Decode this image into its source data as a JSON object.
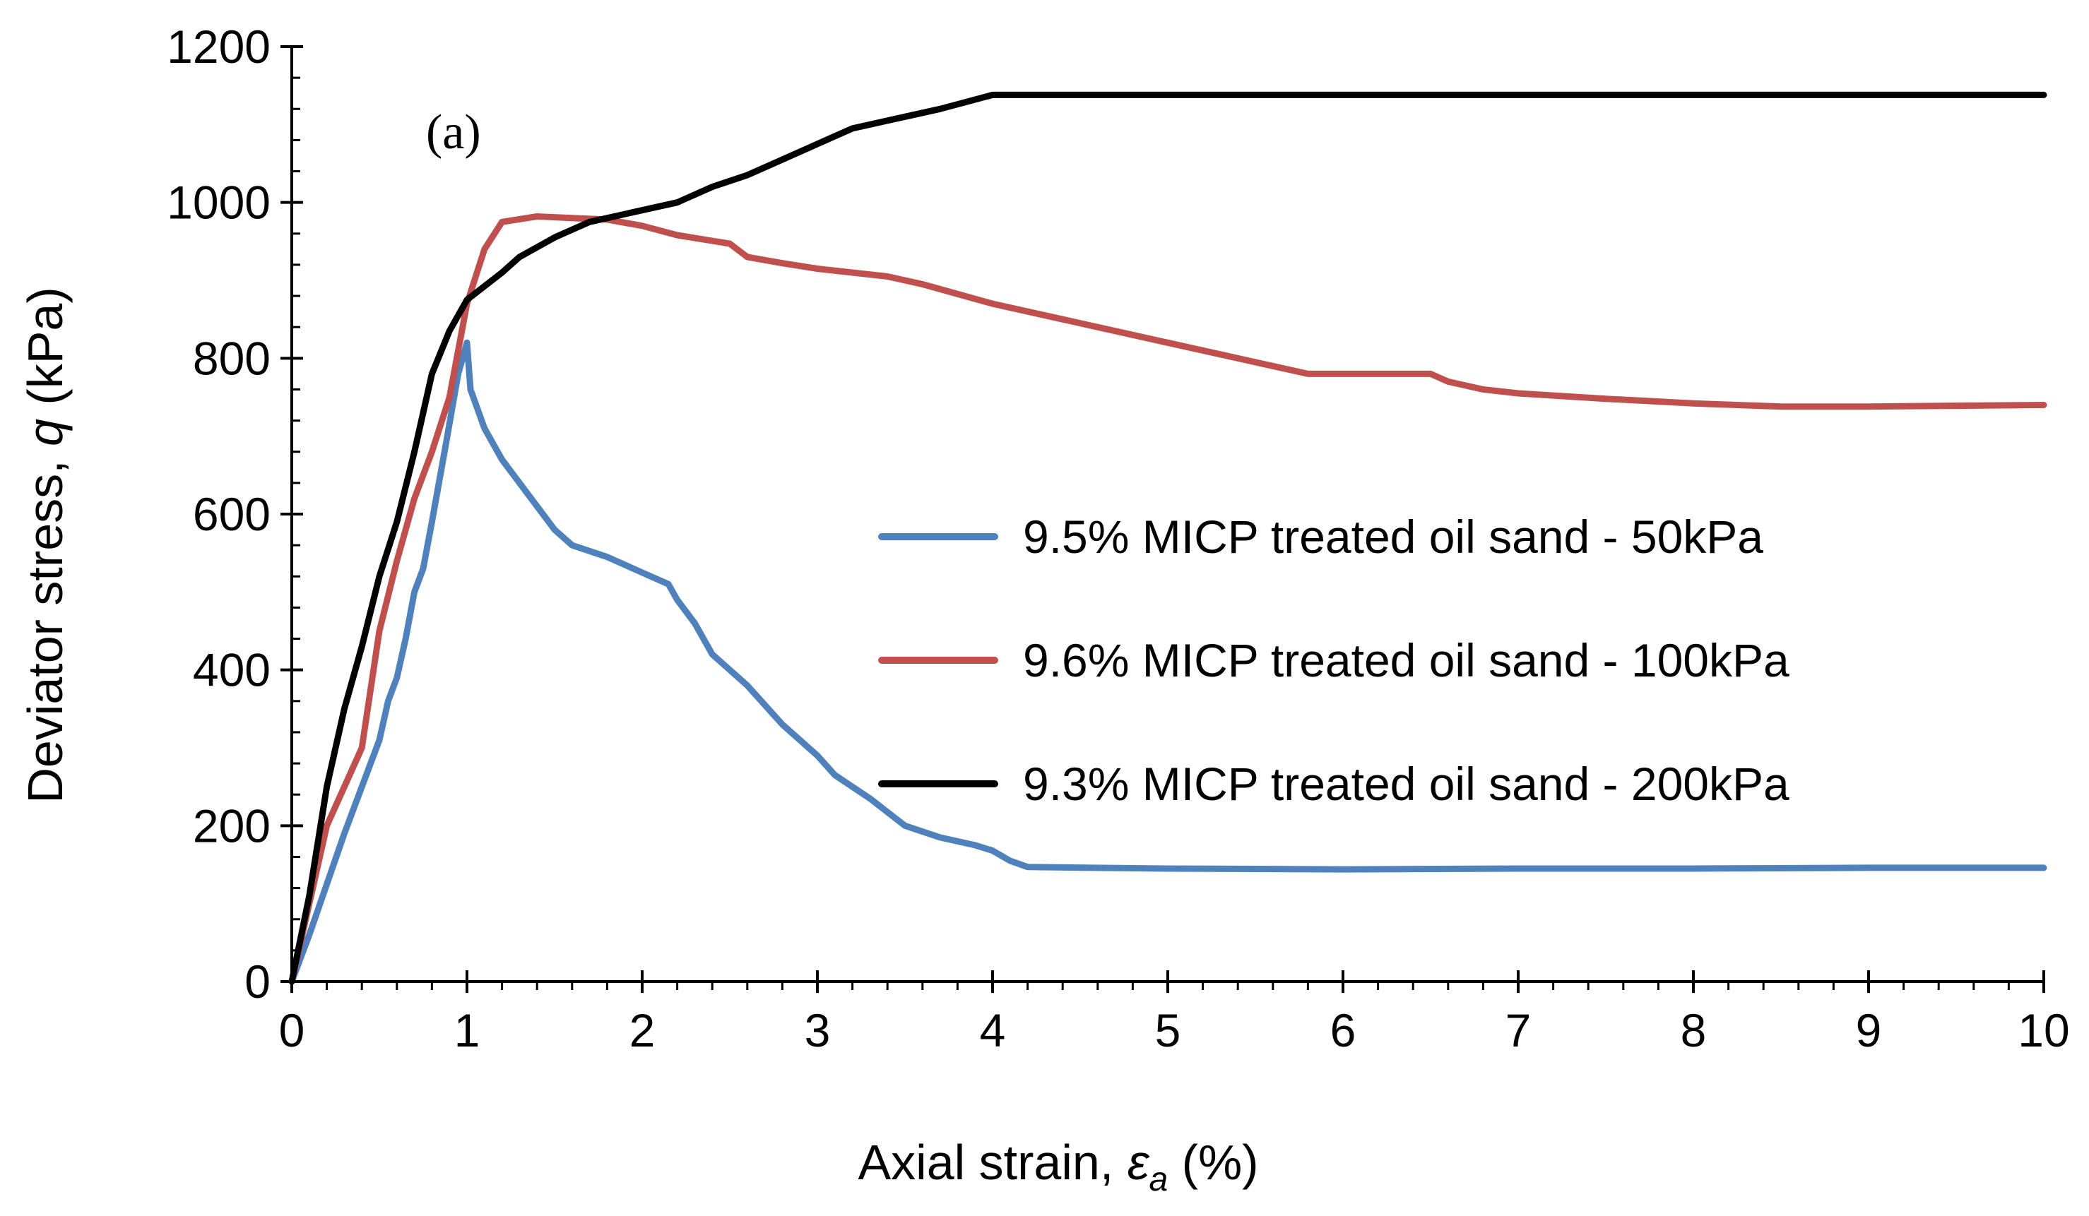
{
  "chart_data": {
    "type": "line",
    "panel_label": "(a)",
    "xlabel_prefix": "Axial strain, ",
    "xlabel_symbol": "ε",
    "xlabel_subscript": "a",
    "xlabel_suffix": " (%)",
    "ylabel_prefix": "Deviator stress, ",
    "ylabel_symbol": "q",
    "ylabel_suffix": " (kPa)",
    "xlim": [
      0,
      10
    ],
    "ylim": [
      0,
      1200
    ],
    "x_ticks": [
      "0",
      "1",
      "2",
      "3",
      "4",
      "5",
      "6",
      "7",
      "8",
      "9",
      "10"
    ],
    "y_ticks": [
      "0",
      "200",
      "400",
      "600",
      "800",
      "1000",
      "1200"
    ],
    "grid": false,
    "legend_position": "center-right",
    "series": [
      {
        "name": "9.5% MICP treated oil sand - 50kPa",
        "color": "#4f81bd",
        "points": [
          [
            0,
            0
          ],
          [
            0.1,
            60
          ],
          [
            0.2,
            125
          ],
          [
            0.3,
            190
          ],
          [
            0.4,
            250
          ],
          [
            0.5,
            310
          ],
          [
            0.55,
            360
          ],
          [
            0.6,
            390
          ],
          [
            0.65,
            440
          ],
          [
            0.7,
            500
          ],
          [
            0.75,
            530
          ],
          [
            0.8,
            590
          ],
          [
            0.88,
            690
          ],
          [
            0.95,
            780
          ],
          [
            1.0,
            820
          ],
          [
            1.02,
            760
          ],
          [
            1.1,
            710
          ],
          [
            1.2,
            670
          ],
          [
            1.4,
            610
          ],
          [
            1.5,
            580
          ],
          [
            1.6,
            560
          ],
          [
            1.8,
            545
          ],
          [
            2.0,
            525
          ],
          [
            2.15,
            510
          ],
          [
            2.2,
            490
          ],
          [
            2.3,
            460
          ],
          [
            2.4,
            420
          ],
          [
            2.6,
            380
          ],
          [
            2.8,
            330
          ],
          [
            3.0,
            290
          ],
          [
            3.1,
            265
          ],
          [
            3.3,
            235
          ],
          [
            3.5,
            200
          ],
          [
            3.7,
            185
          ],
          [
            3.9,
            175
          ],
          [
            4.0,
            168
          ],
          [
            4.1,
            155
          ],
          [
            4.2,
            147
          ],
          [
            5,
            145
          ],
          [
            6,
            144
          ],
          [
            7,
            145
          ],
          [
            8,
            145
          ],
          [
            9,
            146
          ],
          [
            10,
            146
          ]
        ]
      },
      {
        "name": "9.6% MICP treated oil sand - 100kPa",
        "color": "#c0504d",
        "points": [
          [
            0,
            0
          ],
          [
            0.1,
            100
          ],
          [
            0.2,
            200
          ],
          [
            0.3,
            250
          ],
          [
            0.4,
            300
          ],
          [
            0.5,
            450
          ],
          [
            0.6,
            540
          ],
          [
            0.7,
            620
          ],
          [
            0.8,
            680
          ],
          [
            0.9,
            750
          ],
          [
            1.0,
            870
          ],
          [
            1.1,
            940
          ],
          [
            1.2,
            975
          ],
          [
            1.4,
            982
          ],
          [
            1.6,
            980
          ],
          [
            1.8,
            978
          ],
          [
            2.0,
            970
          ],
          [
            2.2,
            958
          ],
          [
            2.5,
            947
          ],
          [
            2.6,
            930
          ],
          [
            2.8,
            922
          ],
          [
            3.0,
            915
          ],
          [
            3.4,
            905
          ],
          [
            3.6,
            895
          ],
          [
            4.0,
            870
          ],
          [
            4.4,
            850
          ],
          [
            5,
            820
          ],
          [
            5.5,
            795
          ],
          [
            5.8,
            780
          ],
          [
            6,
            780
          ],
          [
            6.5,
            780
          ],
          [
            6.6,
            770
          ],
          [
            6.8,
            760
          ],
          [
            7,
            755
          ],
          [
            7.5,
            748
          ],
          [
            8,
            742
          ],
          [
            8.5,
            738
          ],
          [
            9,
            738
          ],
          [
            10,
            740
          ]
        ]
      },
      {
        "name": "9.3% MICP treated oil sand - 200kPa",
        "color": "#000000",
        "points": [
          [
            0,
            0
          ],
          [
            0.1,
            110
          ],
          [
            0.2,
            250
          ],
          [
            0.3,
            350
          ],
          [
            0.4,
            430
          ],
          [
            0.5,
            520
          ],
          [
            0.6,
            590
          ],
          [
            0.7,
            680
          ],
          [
            0.8,
            780
          ],
          [
            0.9,
            835
          ],
          [
            1.0,
            875
          ],
          [
            1.2,
            910
          ],
          [
            1.3,
            930
          ],
          [
            1.5,
            955
          ],
          [
            1.7,
            975
          ],
          [
            2.0,
            990
          ],
          [
            2.2,
            1000
          ],
          [
            2.4,
            1020
          ],
          [
            2.6,
            1035
          ],
          [
            2.8,
            1055
          ],
          [
            3.0,
            1075
          ],
          [
            3.2,
            1095
          ],
          [
            3.5,
            1110
          ],
          [
            3.7,
            1120
          ],
          [
            4.0,
            1138
          ],
          [
            4.1,
            1138
          ],
          [
            5,
            1138
          ],
          [
            6,
            1138
          ],
          [
            7,
            1138
          ],
          [
            8,
            1138
          ],
          [
            9,
            1138
          ],
          [
            10,
            1138
          ]
        ]
      }
    ]
  }
}
